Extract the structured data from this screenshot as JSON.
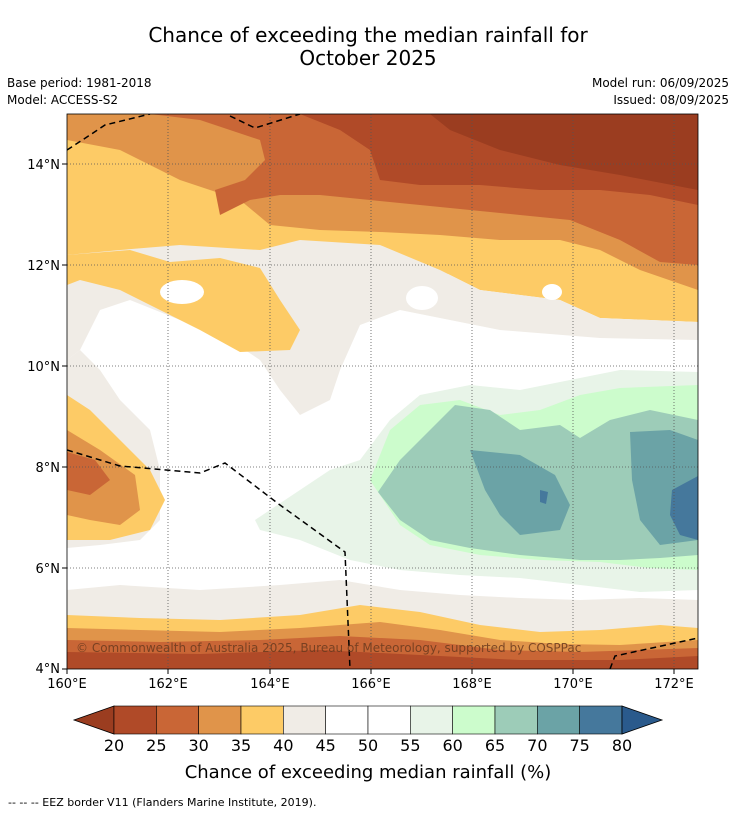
{
  "title_line1": "Chance of exceeding the median rainfall for",
  "title_line2": "October 2025",
  "base_period": "Base period: 1981-2018",
  "model": "Model: ACCESS-S2",
  "model_run": "Model run: 06/09/2025",
  "issued": "Issued: 08/09/2025",
  "copyright": "© Commonwealth of Australia 2025, Bureau of Meteorology, supported by COSPPac",
  "x_ticks": [
    "160°E",
    "162°E",
    "164°E",
    "166°E",
    "168°E",
    "170°E",
    "172°E"
  ],
  "y_ticks": [
    "14°N",
    "12°N",
    "10°N",
    "8°N",
    "6°N",
    "4°N"
  ],
  "colorbar": {
    "ticks": [
      "20",
      "25",
      "30",
      "35",
      "40",
      "45",
      "50",
      "55",
      "60",
      "65",
      "70",
      "75",
      "80"
    ],
    "colors": [
      "#9b3d20",
      "#b04a28",
      "#c96636",
      "#e0944a",
      "#fdcb66",
      "#f0ece6",
      "#ffffff",
      "#ffffff",
      "#e8f4e8",
      "#ccfccc",
      "#9dccb8",
      "#6ba3a6",
      "#45789c",
      "#2a5a8c"
    ],
    "label": "Chance of exceeding median rainfall (%)"
  },
  "footer": "--  --  -- EEZ border V11 (Flanders Marine Institute, 2019)."
}
